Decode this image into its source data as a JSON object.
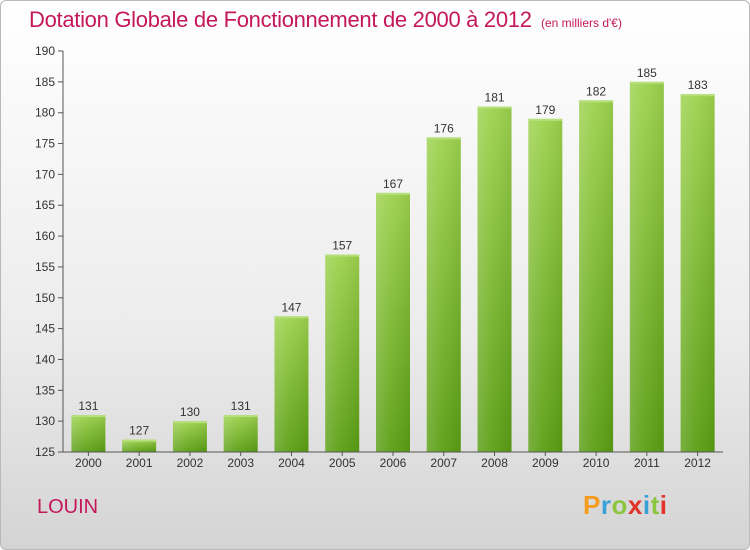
{
  "title": "Dotation Globale de Fonctionnement de 2000 à 2012",
  "subtitle": "(en milliers d'€)",
  "place": "LOUIN",
  "logo": {
    "letters": [
      "P",
      "r",
      "o",
      "x",
      "i",
      "t",
      "i"
    ],
    "colors": [
      "#f39c1e",
      "#3aa0d8",
      "#8cc63f",
      "#e2342b",
      "#3aa0d8",
      "#8cc63f",
      "#e2342b"
    ]
  },
  "colors": {
    "bar_top": "#9dd24e",
    "bar_bottom": "#5a9e14",
    "text": "#c4185a"
  },
  "chart_data": {
    "type": "bar",
    "title": "Dotation Globale de Fonctionnement de 2000 à 2012",
    "subtitle": "(en milliers d'€)",
    "categories": [
      "2000",
      "2001",
      "2002",
      "2003",
      "2004",
      "2005",
      "2006",
      "2007",
      "2008",
      "2009",
      "2010",
      "2011",
      "2012"
    ],
    "values": [
      131,
      127,
      130,
      131,
      147,
      157,
      167,
      176,
      181,
      179,
      182,
      185,
      183
    ],
    "ylim": [
      125,
      190
    ],
    "yticks": [
      125,
      130,
      135,
      140,
      145,
      150,
      155,
      160,
      165,
      170,
      175,
      180,
      185,
      190
    ],
    "grid": false
  }
}
